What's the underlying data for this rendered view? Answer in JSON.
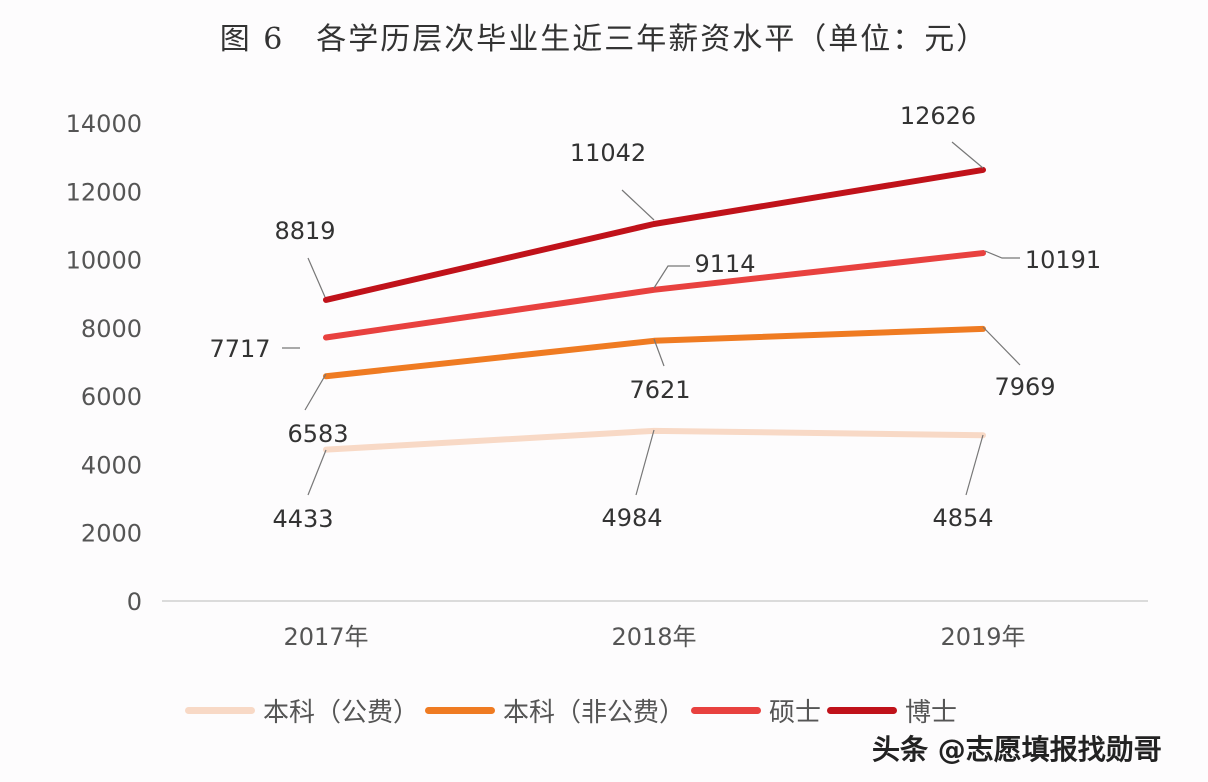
{
  "chart_data": {
    "type": "line",
    "title": "图 6　各学历层次毕业生近三年薪资水平（单位：元）",
    "categories": [
      "2017年",
      "2018年",
      "2019年"
    ],
    "ylim": [
      0,
      14000
    ],
    "yticks": [
      0,
      2000,
      4000,
      6000,
      8000,
      10000,
      12000,
      14000
    ],
    "grid": false,
    "legend_position": "bottom",
    "series": [
      {
        "name": "本科（公费）",
        "color": "#f8d9c6",
        "values": [
          4433,
          4984,
          4854
        ]
      },
      {
        "name": "本科（非公费）",
        "color": "#ef7b22",
        "values": [
          6583,
          7621,
          7969
        ]
      },
      {
        "name": "硕士",
        "color": "#e8413f",
        "values": [
          7717,
          9114,
          10191
        ]
      },
      {
        "name": "博士",
        "color": "#c0121a",
        "values": [
          8819,
          11042,
          12626
        ]
      }
    ]
  },
  "watermark": "头条 @志愿填报找勋哥"
}
